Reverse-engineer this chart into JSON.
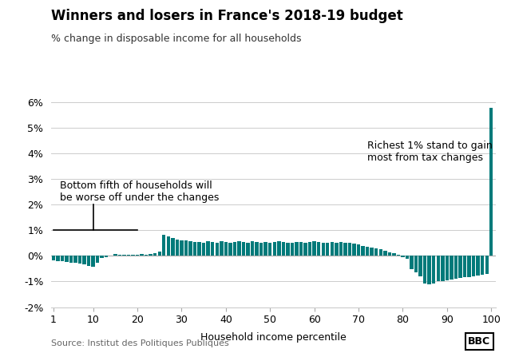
{
  "title": "Winners and losers in France's 2018-19 budget",
  "subtitle": "% change in disposable income for all households",
  "xlabel": "Household income percentile",
  "source": "Source: Institut des Politiques Publiques",
  "bar_color": "#007a7a",
  "background_color": "#ffffff",
  "ylim": [
    -2.0,
    6.0
  ],
  "yticks": [
    -2,
    -1,
    0,
    1,
    2,
    3,
    4,
    5,
    6
  ],
  "xticks": [
    1,
    10,
    20,
    30,
    40,
    50,
    60,
    70,
    80,
    90,
    100
  ],
  "annotation1_text": "Bottom fifth of households will\nbe worse off under the changes",
  "annotation2_text": "Richest 1% stand to gain\nmost from tax changes",
  "values": [
    -0.18,
    -0.2,
    -0.22,
    -0.25,
    -0.27,
    -0.28,
    -0.3,
    -0.32,
    -0.38,
    -0.42,
    -0.28,
    -0.08,
    -0.04,
    0.02,
    0.07,
    0.06,
    0.05,
    0.04,
    0.04,
    0.06,
    0.07,
    0.05,
    0.09,
    0.12,
    0.18,
    0.82,
    0.75,
    0.7,
    0.65,
    0.62,
    0.6,
    0.57,
    0.54,
    0.54,
    0.52,
    0.57,
    0.54,
    0.52,
    0.57,
    0.54,
    0.52,
    0.54,
    0.57,
    0.54,
    0.52,
    0.57,
    0.54,
    0.52,
    0.54,
    0.52,
    0.54,
    0.57,
    0.54,
    0.52,
    0.52,
    0.54,
    0.54,
    0.52,
    0.54,
    0.57,
    0.54,
    0.52,
    0.52,
    0.54,
    0.52,
    0.54,
    0.52,
    0.5,
    0.47,
    0.44,
    0.4,
    0.36,
    0.33,
    0.3,
    0.26,
    0.2,
    0.15,
    0.1,
    0.04,
    -0.04,
    -0.1,
    -0.52,
    -0.65,
    -0.8,
    -1.08,
    -1.12,
    -1.08,
    -1.0,
    -0.97,
    -0.94,
    -0.92,
    -0.9,
    -0.87,
    -0.84,
    -0.82,
    -0.8,
    -0.77,
    -0.74,
    -0.7,
    5.8
  ]
}
